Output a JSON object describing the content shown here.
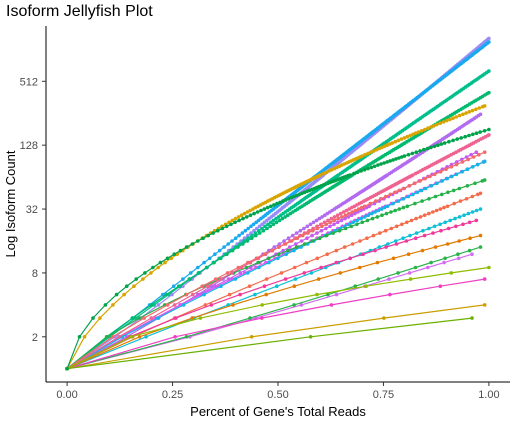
{
  "chart_data": {
    "type": "line",
    "title": "Isoform Jellyfish Plot",
    "xlabel": "Percent of Gene's Total Reads",
    "ylabel": "Log Isoform Count",
    "x_ticks": [
      {
        "value": 0.0,
        "label": "0.00"
      },
      {
        "value": 0.25,
        "label": "0.25"
      },
      {
        "value": 0.5,
        "label": "0.50"
      },
      {
        "value": 0.75,
        "label": "0.75"
      },
      {
        "value": 1.0,
        "label": "1.00"
      }
    ],
    "y_scale": "log2",
    "y_ticks": [
      {
        "value": 2,
        "label": "2"
      },
      {
        "value": 8,
        "label": "8"
      },
      {
        "value": 32,
        "label": "32"
      },
      {
        "value": 128,
        "label": "128"
      },
      {
        "value": 512,
        "label": "512"
      }
    ],
    "xlim": [
      -0.05,
      1.05
    ],
    "ylim": [
      0.75,
      1700
    ],
    "grid": false,
    "legend": "none",
    "series": [
      {
        "color": "#9a8cf7",
        "size": 1300,
        "curve": 0.8,
        "bend": 0.5,
        "end_x": 1.0,
        "start": 1
      },
      {
        "color": "#b26bf0",
        "size": 250,
        "curve": 0.78,
        "bend": 0.55,
        "end_x": 0.98,
        "start": 1
      },
      {
        "color": "#c65bf2",
        "size": 110,
        "curve": 0.55,
        "bend": 0.5,
        "end_x": 0.97,
        "start": 1
      },
      {
        "color": "#e055f0",
        "size": 90,
        "curve": 0.45,
        "bend": 0.45,
        "end_x": 0.99,
        "start": 1
      },
      {
        "color": "#d46bf3",
        "size": 12,
        "curve": 0.9,
        "bend": 0.3,
        "end_x": 0.96,
        "start": 1
      },
      {
        "color": "#1aa9ee",
        "size": 1200,
        "curve": 0.65,
        "bend": 0.45,
        "end_x": 1.0,
        "start": 1
      },
      {
        "color": "#14b6e6",
        "size": 90,
        "curve": 0.5,
        "bend": 0.5,
        "end_x": 0.99,
        "start": 1
      },
      {
        "color": "#0fc1d6",
        "size": 32,
        "curve": 0.6,
        "bend": 0.55,
        "end_x": 0.98,
        "start": 1
      },
      {
        "color": "#00bf8c",
        "size": 640,
        "curve": 0.6,
        "bend": 0.5,
        "end_x": 1.0,
        "start": 1
      },
      {
        "color": "#00ba6f",
        "size": 400,
        "curve": 0.5,
        "bend": 0.6,
        "end_x": 1.0,
        "start": 1
      },
      {
        "color": "#25b04a",
        "size": 60,
        "curve": 0.3,
        "bend": 0.7,
        "end_x": 0.99,
        "start": 1
      },
      {
        "color": "#2bb34b",
        "size": 14,
        "curve": 0.85,
        "bend": 0.4,
        "end_x": 0.98,
        "start": 1
      },
      {
        "color": "#f0628f",
        "size": 160,
        "curve": 0.55,
        "bend": 0.5,
        "end_x": 1.0,
        "start": 1
      },
      {
        "color": "#f26b6b",
        "size": 110,
        "curve": 0.4,
        "bend": 0.55,
        "end_x": 0.99,
        "start": 1
      },
      {
        "color": "#f36d4d",
        "size": 45,
        "curve": 0.5,
        "bend": 0.5,
        "end_x": 0.98,
        "start": 1
      },
      {
        "color": "#f0399b",
        "size": 25,
        "curve": 0.35,
        "bend": 0.6,
        "end_x": 0.97,
        "start": 1
      },
      {
        "color": "#ee3fc3",
        "size": 7,
        "curve": 0.25,
        "bend": 0.55,
        "end_x": 0.99,
        "start": 1
      },
      {
        "color": "#d9a400",
        "size": 300,
        "curve": 0.2,
        "bend": 0.8,
        "end_x": 0.99,
        "start": 1
      },
      {
        "color": "#e07b00",
        "size": 18,
        "curve": 0.3,
        "bend": 0.5,
        "end_x": 0.98,
        "start": 1
      },
      {
        "color": "#cc9d00",
        "size": 4,
        "curve": 0.35,
        "bend": 0.45,
        "end_x": 0.99,
        "start": 1
      },
      {
        "color": "#8fbd00",
        "size": 9,
        "curve": 0.2,
        "bend": 0.85,
        "end_x": 1.0,
        "start": 1
      },
      {
        "color": "#6bb100",
        "size": 3,
        "curve": 0.5,
        "bend": 0.6,
        "end_x": 0.96,
        "start": 1
      },
      {
        "color": "#00a34a",
        "size": 180,
        "curve": 0.15,
        "bend": 0.9,
        "end_x": 1.0,
        "start": 1
      }
    ]
  }
}
